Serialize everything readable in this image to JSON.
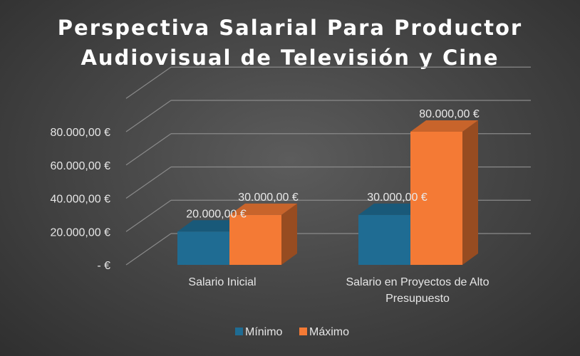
{
  "chart_data": {
    "type": "bar",
    "title_lines": [
      "Perspectiva Salarial Para Productor",
      "Audiovisual de Televisión y Cine"
    ],
    "categories": [
      [
        "Salario Inicial"
      ],
      [
        "Salario en Proyectos de Alto",
        "Presupuesto"
      ]
    ],
    "series": [
      {
        "name": "Mínimo",
        "color": "#1f6c93",
        "values": [
          20000,
          30000
        ]
      },
      {
        "name": "Máximo",
        "color": "#f47a35",
        "values": [
          30000,
          80000
        ]
      }
    ],
    "data_labels": [
      [
        "20.000,00 €",
        "30.000,00 €"
      ],
      [
        "30.000,00 €",
        "80.000,00 €"
      ]
    ],
    "yticks": [
      0,
      20000,
      40000,
      60000,
      80000
    ],
    "ytick_labels": [
      "-  €",
      "20.000,00 €",
      "40.000,00 €",
      "60.000,00 €",
      "80.000,00 €"
    ],
    "ylim": [
      0,
      100000
    ],
    "legend_position": "bottom",
    "grid": true,
    "view": "3d-clustered-column"
  }
}
